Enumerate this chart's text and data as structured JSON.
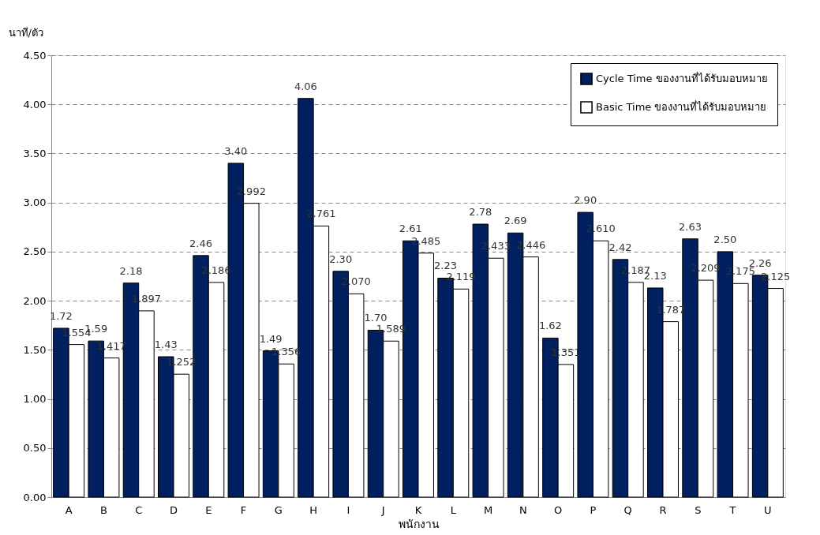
{
  "chart_data": {
    "type": "bar",
    "xlabel": "พนักงาน",
    "ylabel": "นาที/ตัว",
    "categories": [
      "A",
      "B",
      "C",
      "D",
      "E",
      "F",
      "G",
      "H",
      "I",
      "J",
      "K",
      "L",
      "M",
      "N",
      "O",
      "P",
      "Q",
      "R",
      "S",
      "T",
      "U"
    ],
    "series": [
      {
        "name": "Cycle Time ของงานที่ได้รับมอบหมาย",
        "color": "#002060",
        "values": [
          1.72,
          1.59,
          2.18,
          1.43,
          2.46,
          3.4,
          1.49,
          4.06,
          2.3,
          1.7,
          2.61,
          2.23,
          2.78,
          2.69,
          1.62,
          2.9,
          2.42,
          2.13,
          2.63,
          2.5,
          2.26
        ],
        "value_labels": [
          "1.72",
          "1.59",
          "2.18",
          "1.43",
          "2.46",
          "3.40",
          "1.49",
          "4.06",
          "2.30",
          "1.70",
          "2.61",
          "2.23",
          "2.78",
          "2.69",
          "1.62",
          "2.90",
          "2.42",
          "2.13",
          "2.63",
          "2.50",
          "2.26"
        ]
      },
      {
        "name": "Basic Time ของงานที่ได้รับมอบหมาย",
        "color": "#ffffff",
        "values": [
          1.554,
          1.417,
          1.897,
          1.252,
          2.186,
          2.992,
          1.356,
          2.761,
          2.07,
          1.589,
          2.485,
          2.119,
          2.433,
          2.446,
          1.351,
          2.61,
          2.187,
          1.787,
          2.209,
          2.175,
          2.125
        ],
        "value_labels": [
          "1.554",
          "1.417",
          "1.897",
          "1.252",
          "2.186",
          "2.992",
          "1.356",
          "2.761",
          "2.070",
          "1.589",
          "2.485",
          "2.119",
          "2.433",
          "2.446",
          "1.351",
          "2.610",
          "2.187",
          "1.787",
          "2.209",
          "2.175",
          "2.125"
        ]
      }
    ],
    "ylim": [
      0,
      4.5
    ],
    "yticks": [
      {
        "value": 0,
        "label": "0.00"
      },
      {
        "value": 0.5,
        "label": "0.50"
      },
      {
        "value": 1,
        "label": "1.00"
      },
      {
        "value": 1.5,
        "label": "1.50"
      },
      {
        "value": 2,
        "label": "2.00"
      },
      {
        "value": 2.5,
        "label": "2.50"
      },
      {
        "value": 3,
        "label": "3.00"
      },
      {
        "value": 3.5,
        "label": "3.50"
      },
      {
        "value": 4,
        "label": "4.00"
      },
      {
        "value": 4.5,
        "label": "4.50"
      }
    ],
    "grid": "y",
    "legend": "top right"
  }
}
